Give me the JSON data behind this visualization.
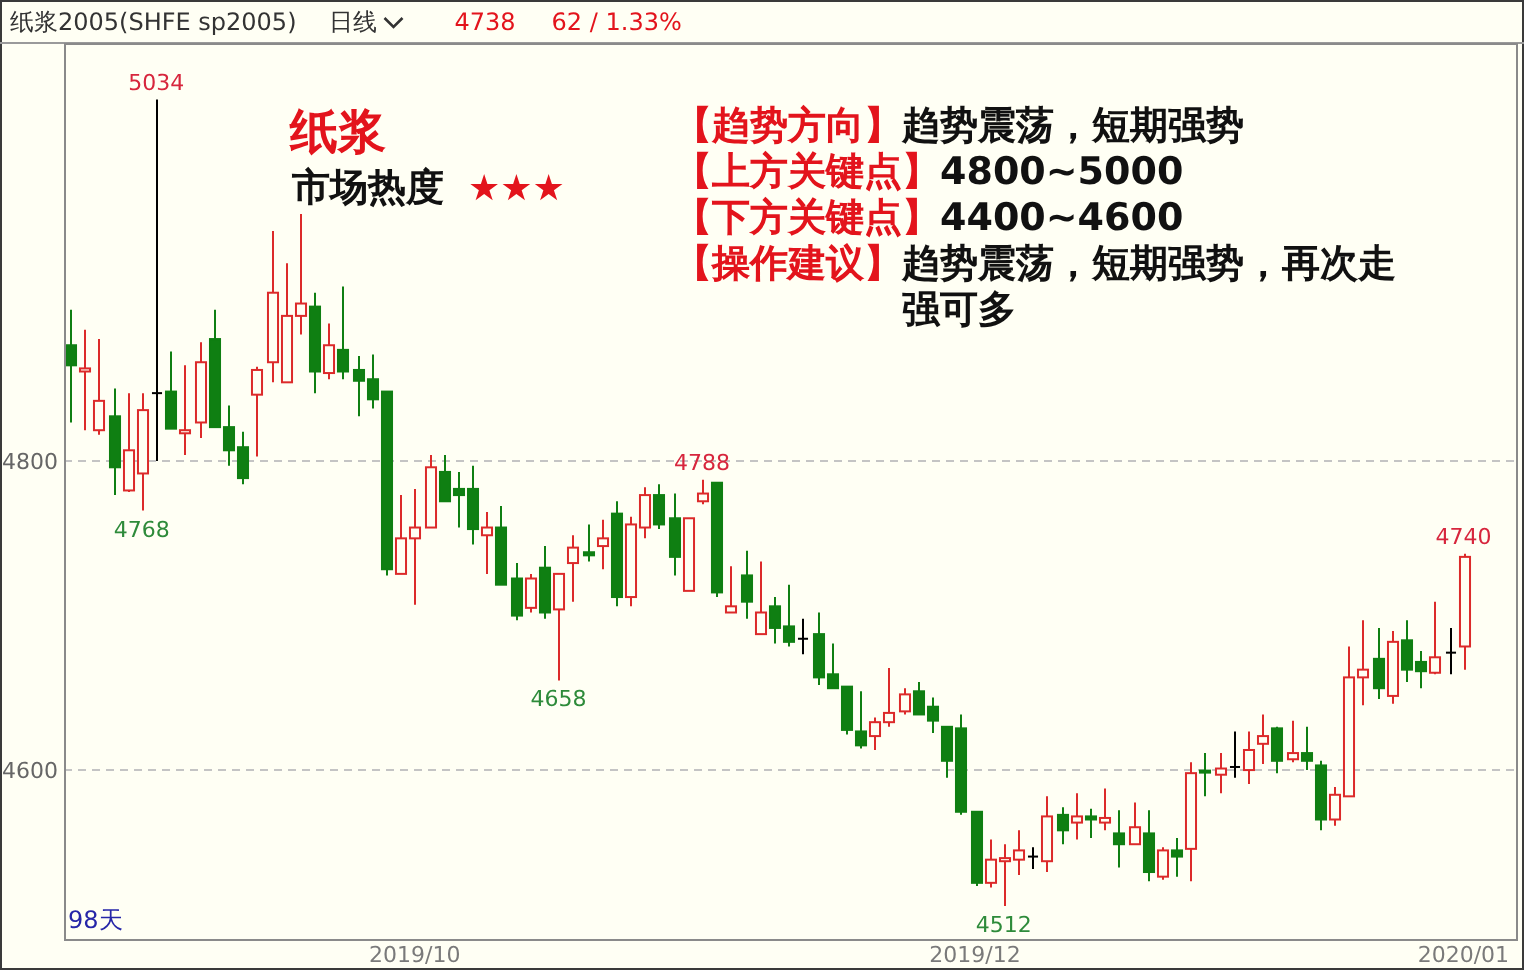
{
  "chart_data": {
    "type": "candlestick",
    "title": "纸浆2005(SHFE sp2005)",
    "categories": [
      null,
      null,
      null,
      null,
      null,
      null,
      null,
      null,
      null,
      null,
      null,
      null,
      null,
      null,
      null,
      null,
      null,
      null,
      null,
      null,
      null,
      null,
      null,
      null,
      "2019/10",
      null,
      null,
      null,
      null,
      null,
      null,
      null,
      null,
      null,
      null,
      null,
      null,
      null,
      null,
      null,
      null,
      null,
      null,
      null,
      null,
      null,
      null,
      null,
      null,
      null,
      null,
      null,
      null,
      null,
      null,
      null,
      null,
      null,
      null,
      null,
      null,
      null,
      null,
      "2019/12",
      null,
      null,
      null,
      null,
      null,
      null,
      null,
      null,
      null,
      null,
      null,
      null,
      null,
      null,
      null,
      null,
      null,
      null,
      null,
      null,
      null,
      null,
      null,
      null,
      null,
      null,
      null,
      null,
      null,
      null,
      null,
      null,
      null,
      "2020/01"
    ],
    "ohlc": [
      [
        4875,
        4898,
        4825,
        4862
      ],
      [
        4858,
        4885,
        4820,
        4860
      ],
      [
        4820,
        4879,
        4817,
        4839
      ],
      [
        4829,
        4847,
        4778,
        4796
      ],
      [
        4781,
        4844,
        4780,
        4807
      ],
      [
        4792,
        4844,
        4768,
        4833
      ],
      [
        4844,
        5034,
        4800,
        4844
      ],
      [
        4845,
        4871,
        4821,
        4821
      ],
      [
        4818,
        4862,
        4804,
        4820
      ],
      [
        4825,
        4877,
        4815,
        4864
      ],
      [
        4879,
        4898,
        4822,
        4822
      ],
      [
        4822,
        4836,
        4797,
        4807
      ],
      [
        4809,
        4819,
        4785,
        4789
      ],
      [
        4843,
        4861,
        4803,
        4859
      ],
      [
        4864,
        4949,
        4851,
        4909
      ],
      [
        4851,
        4928,
        4851,
        4894
      ],
      [
        4894,
        4960,
        4882,
        4902
      ],
      [
        4900,
        4909,
        4844,
        4858
      ],
      [
        4857,
        4889,
        4853,
        4875
      ],
      [
        4872,
        4913,
        4853,
        4858
      ],
      [
        4859,
        4868,
        4829,
        4852
      ],
      [
        4853,
        4869,
        4834,
        4840
      ],
      [
        4845,
        4845,
        4726,
        4730
      ],
      [
        4727,
        4778,
        4727,
        4750
      ],
      [
        4750,
        4782,
        4707,
        4757
      ],
      [
        4757,
        4804,
        4757,
        4796
      ],
      [
        4793,
        4804,
        4774,
        4774
      ],
      [
        4782,
        4793,
        4757,
        4778
      ],
      [
        4782,
        4797,
        4746,
        4756
      ],
      [
        4752,
        4767,
        4727,
        4757
      ],
      [
        4757,
        4771,
        4720,
        4720
      ],
      [
        4724,
        4734,
        4697,
        4700
      ],
      [
        4705,
        4727,
        4702,
        4724
      ],
      [
        4731,
        4745,
        4698,
        4702
      ],
      [
        4704,
        4727,
        4658,
        4727
      ],
      [
        4734,
        4752,
        4709,
        4744
      ],
      [
        4741,
        4759,
        4735,
        4739
      ],
      [
        4745,
        4762,
        4730,
        4750
      ],
      [
        4766,
        4774,
        4706,
        4712
      ],
      [
        4712,
        4764,
        4706,
        4759
      ],
      [
        4757,
        4783,
        4750,
        4778
      ],
      [
        4778,
        4785,
        4756,
        4759
      ],
      [
        4763,
        4779,
        4726,
        4738
      ],
      [
        4716,
        4763,
        4716,
        4763
      ],
      [
        4774,
        4788,
        4772,
        4779
      ],
      [
        4786,
        4786,
        4712,
        4715
      ],
      [
        4702,
        4732,
        4702,
        4706
      ],
      [
        4726,
        4742,
        4698,
        4709
      ],
      [
        4688,
        4735,
        4688,
        4702
      ],
      [
        4706,
        4712,
        4682,
        4692
      ],
      [
        4693,
        4720,
        4680,
        4683
      ],
      [
        4685,
        4698,
        4675,
        4685
      ],
      [
        4688,
        4702,
        4655,
        4660
      ],
      [
        4662,
        4682,
        4653,
        4653
      ],
      [
        4654,
        4654,
        4623,
        4626
      ],
      [
        4625,
        4651,
        4614,
        4616
      ],
      [
        4622,
        4634,
        4613,
        4631
      ],
      [
        4631,
        4666,
        4628,
        4637
      ],
      [
        4638,
        4653,
        4636,
        4649
      ],
      [
        4651,
        4657,
        4636,
        4636
      ],
      [
        4641,
        4647,
        4624,
        4632
      ],
      [
        4628,
        4628,
        4595,
        4606
      ],
      [
        4627,
        4636,
        4571,
        4573
      ],
      [
        4573,
        4573,
        4525,
        4527
      ],
      [
        4527,
        4555,
        4524,
        4542
      ],
      [
        4541,
        4552,
        4512,
        4543
      ],
      [
        4542,
        4561,
        4532,
        4548
      ],
      [
        4544,
        4550,
        4536,
        4544
      ],
      [
        4541,
        4583,
        4534,
        4570
      ],
      [
        4571,
        4576,
        4552,
        4561
      ],
      [
        4566,
        4585,
        4555,
        4570
      ],
      [
        4570,
        4575,
        4556,
        4568
      ],
      [
        4566,
        4588,
        4561,
        4569
      ],
      [
        4559,
        4574,
        4537,
        4552
      ],
      [
        4552,
        4579,
        4552,
        4563
      ],
      [
        4559,
        4574,
        4528,
        4534
      ],
      [
        4531,
        4550,
        4529,
        4548
      ],
      [
        4548,
        4556,
        4531,
        4544
      ],
      [
        4549,
        4605,
        4528,
        4598
      ],
      [
        4599,
        4611,
        4583,
        4598
      ],
      [
        4597,
        4611,
        4585,
        4601
      ],
      [
        4602,
        4625,
        4595,
        4602
      ],
      [
        4600,
        4625,
        4591,
        4613
      ],
      [
        4617,
        4636,
        4604,
        4622
      ],
      [
        4627,
        4628,
        4598,
        4606
      ],
      [
        4607,
        4632,
        4605,
        4611
      ],
      [
        4611,
        4628,
        4600,
        4606
      ],
      [
        4603,
        4606,
        4561,
        4568
      ],
      [
        4568,
        4589,
        4564,
        4584
      ],
      [
        4583,
        4680,
        4583,
        4660
      ],
      [
        4660,
        4697,
        4642,
        4665
      ],
      [
        4672,
        4692,
        4646,
        4653
      ],
      [
        4648,
        4690,
        4643,
        4683
      ],
      [
        4684,
        4697,
        4657,
        4665
      ],
      [
        4670,
        4677,
        4653,
        4664
      ],
      [
        4663,
        4709,
        4662,
        4673
      ],
      [
        4676,
        4692,
        4662,
        4676
      ],
      [
        4680,
        4740,
        4665,
        4738
      ]
    ],
    "colors": [
      "#0f7f12",
      "#dc2a2a",
      "#dc2a2a",
      "#0f7f12",
      "#dc2a2a",
      "#dc2a2a",
      "#000000",
      "#0f7f12",
      "#dc2a2a",
      "#dc2a2a",
      "#0f7f12",
      "#0f7f12",
      "#0f7f12",
      "#dc2a2a",
      "#dc2a2a",
      "#dc2a2a",
      "#dc2a2a",
      "#0f7f12",
      "#dc2a2a",
      "#0f7f12",
      "#0f7f12",
      "#0f7f12",
      "#0f7f12",
      "#dc2a2a",
      "#dc2a2a",
      "#dc2a2a",
      "#0f7f12",
      "#0f7f12",
      "#0f7f12",
      "#dc2a2a",
      "#0f7f12",
      "#0f7f12",
      "#dc2a2a",
      "#0f7f12",
      "#dc2a2a",
      "#dc2a2a",
      "#0f7f12",
      "#dc2a2a",
      "#0f7f12",
      "#dc2a2a",
      "#dc2a2a",
      "#0f7f12",
      "#0f7f12",
      "#dc2a2a",
      "#dc2a2a",
      "#0f7f12",
      "#dc2a2a",
      "#0f7f12",
      "#dc2a2a",
      "#0f7f12",
      "#0f7f12",
      "#000000",
      "#0f7f12",
      "#0f7f12",
      "#0f7f12",
      "#0f7f12",
      "#dc2a2a",
      "#dc2a2a",
      "#dc2a2a",
      "#0f7f12",
      "#0f7f12",
      "#0f7f12",
      "#0f7f12",
      "#0f7f12",
      "#dc2a2a",
      "#dc2a2a",
      "#dc2a2a",
      "#000000",
      "#dc2a2a",
      "#0f7f12",
      "#dc2a2a",
      "#0f7f12",
      "#dc2a2a",
      "#0f7f12",
      "#dc2a2a",
      "#0f7f12",
      "#dc2a2a",
      "#0f7f12",
      "#dc2a2a",
      "#0f7f12",
      "#dc2a2a",
      "#000000",
      "#dc2a2a",
      "#dc2a2a",
      "#0f7f12",
      "#dc2a2a",
      "#0f7f12",
      "#0f7f12",
      "#dc2a2a",
      "#dc2a2a",
      "#dc2a2a",
      "#0f7f12",
      "#dc2a2a",
      "#0f7f12",
      "#0f7f12",
      "#dc2a2a",
      "#000000",
      "#dc2a2a"
    ],
    "ylim": [
      4490,
      5070
    ],
    "yticks": [
      4600,
      4800
    ],
    "grid": "y",
    "annotations": [
      "日线",
      "4738",
      "62 / 1.33%",
      "纸浆",
      "市场热度",
      "★★★",
      "【趋势方向】",
      "趋势震荡，短期强势",
      "【上方关键点】",
      "4800~5000",
      "【下方关键点】",
      "4400~4600",
      "【操作建议】",
      "趋势震荡，短期强势，再次走强可多",
      "98天",
      {
        "text": "5034",
        "y": 5034
      },
      {
        "text": "4768",
        "y": 4768
      },
      {
        "text": "4658",
        "y": 4658
      },
      {
        "text": "4788",
        "y": 4788
      },
      {
        "text": "4512",
        "y": 4512
      },
      {
        "text": "4740",
        "y": 4740
      }
    ]
  }
}
